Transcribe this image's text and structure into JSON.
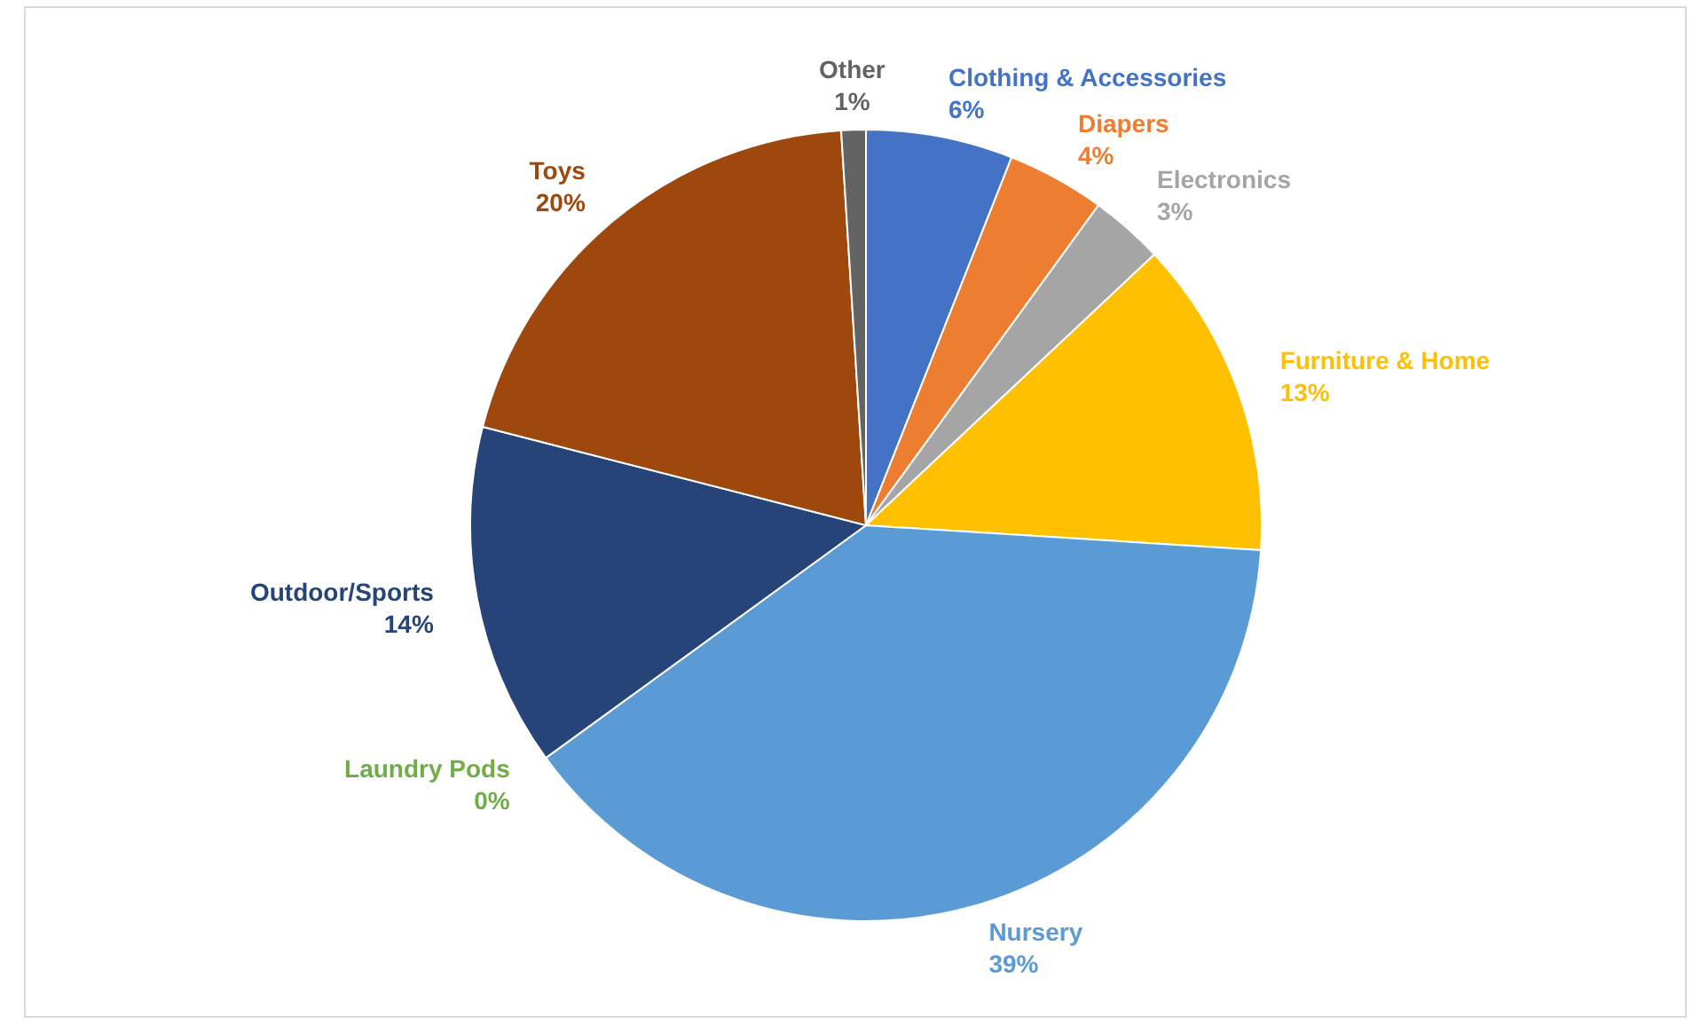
{
  "chart_data": {
    "type": "pie",
    "categories": [
      "Clothing & Accessories",
      "Diapers",
      "Electronics",
      "Furniture & Home",
      "Nursery",
      "Laundry Pods",
      "Outdoor/Sports",
      "Toys",
      "Other"
    ],
    "values": [
      6,
      4,
      3,
      13,
      39,
      0,
      14,
      20,
      1
    ],
    "value_labels": [
      "6%",
      "4%",
      "3%",
      "13%",
      "39%",
      "0%",
      "14%",
      "20%",
      "1%"
    ],
    "colors": [
      "#4472c4",
      "#ed7d31",
      "#a5a5a5",
      "#ffc000",
      "#5b9bd5",
      "#70ad47",
      "#264478",
      "#9e480e",
      "#636363"
    ]
  }
}
